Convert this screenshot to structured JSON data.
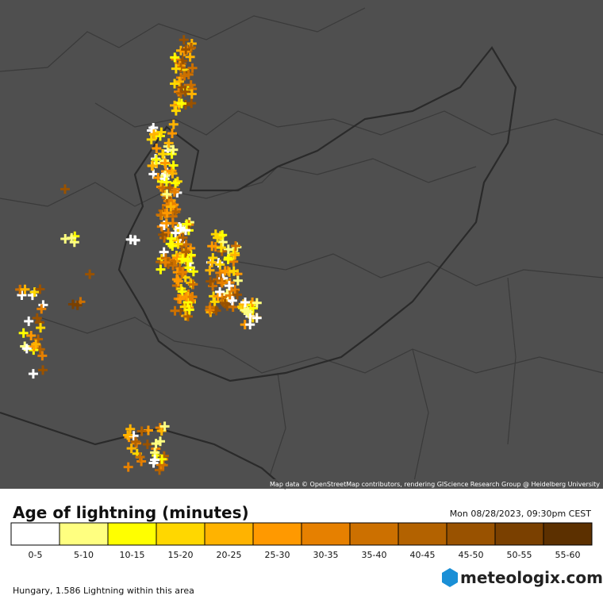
{
  "map": {
    "attribution": "Map data © OpenStreetMap contributors, rendering GIScience Research Group @ Heidelberg University"
  },
  "legend": {
    "title": "Age of lightning (minutes)",
    "timestamp": "Mon 08/28/2023, 09:30pm CEST",
    "items": [
      {
        "label": "0-5",
        "color": "#ffffff"
      },
      {
        "label": "5-10",
        "color": "#ffff80"
      },
      {
        "label": "10-15",
        "color": "#ffff00"
      },
      {
        "label": "15-20",
        "color": "#ffd700"
      },
      {
        "label": "20-25",
        "color": "#ffb300"
      },
      {
        "label": "25-30",
        "color": "#ff9900"
      },
      {
        "label": "30-35",
        "color": "#e68000"
      },
      {
        "label": "35-40",
        "color": "#cc7000"
      },
      {
        "label": "40-45",
        "color": "#b36200"
      },
      {
        "label": "45-50",
        "color": "#995200"
      },
      {
        "label": "50-55",
        "color": "#7a4000"
      },
      {
        "label": "55-60",
        "color": "#5c3000"
      }
    ]
  },
  "footer": {
    "area_text": "Hungary, 1.586 Lightning within this area",
    "logo": "meteologix.com"
  }
}
